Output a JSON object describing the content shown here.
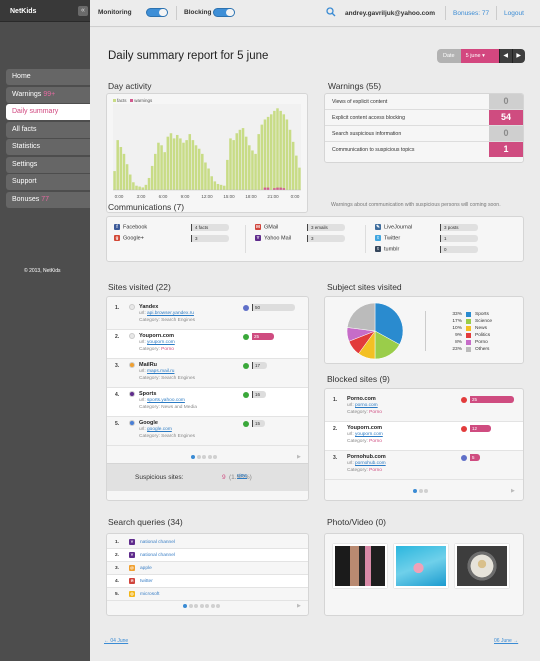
{
  "sidebar": {
    "logo": "NetKids",
    "collapse": "«",
    "items": [
      {
        "label": "Home",
        "badge": ""
      },
      {
        "label": "Warnings",
        "badge": "99+"
      },
      {
        "label": "Daily summary",
        "badge": ""
      },
      {
        "label": "All facts",
        "badge": ""
      },
      {
        "label": "Statistics",
        "badge": ""
      },
      {
        "label": "Settings",
        "badge": ""
      },
      {
        "label": "Support",
        "badge": ""
      },
      {
        "label": "Bonuses",
        "badge": "77"
      }
    ],
    "copyright": "© 2013, NetKids"
  },
  "topbar": {
    "monitoring_label": "Monitoring",
    "blocking_label": "Blocking",
    "email": "andrey.gavriljuk@yahoo.com",
    "bonuses": "Bonuses: 77",
    "logout": "Logout"
  },
  "page": {
    "title": "Daily summary report for 5 june",
    "date_label": "Date",
    "date_value": "5 june",
    "prev_arrow": "◀",
    "next_arrow": "▶",
    "prev_day": "← 04 June",
    "next_day": "06 June →"
  },
  "day_activity": {
    "title": "Day activity",
    "legend": [
      "facts",
      "warnings"
    ],
    "x_ticks": [
      "0:00",
      "3:00",
      "6:00",
      "9:00",
      "12:00",
      "15:00",
      "18:00",
      "21:00",
      "0:00"
    ],
    "colors": {
      "facts": "#c8dc86",
      "warnings": "#d25b8f"
    }
  },
  "chart_data": {
    "type": "bar",
    "x_ticks": [
      "0:00",
      "3:00",
      "6:00",
      "9:00",
      "12:00",
      "15:00",
      "18:00",
      "21:00",
      "0:00"
    ],
    "series": [
      {
        "name": "facts",
        "values": [
          22,
          58,
          50,
          42,
          30,
          18,
          9,
          5,
          4,
          3,
          6,
          14,
          28,
          42,
          55,
          52,
          44,
          62,
          66,
          60,
          64,
          60,
          55,
          58,
          65,
          58,
          52,
          48,
          42,
          32,
          25,
          16,
          10,
          7,
          6,
          5,
          35,
          60,
          58,
          66,
          70,
          72,
          62,
          52,
          46,
          42,
          65,
          76,
          82,
          85,
          88,
          92,
          95,
          92,
          88,
          82,
          70,
          56,
          40,
          26
        ]
      },
      {
        "name": "warnings",
        "values": [
          0,
          0,
          0,
          0,
          0,
          0,
          0,
          0,
          0,
          0,
          0,
          0,
          0,
          0,
          0,
          0,
          0,
          0,
          0,
          0,
          0,
          0,
          0,
          0,
          0,
          0,
          0,
          0,
          0,
          0,
          0,
          0,
          0,
          0,
          0,
          0,
          0,
          0,
          0,
          0,
          0,
          0,
          0,
          0,
          0,
          0,
          0,
          0,
          8,
          8,
          0,
          6,
          8,
          8,
          6,
          0,
          0,
          0,
          0,
          0
        ]
      }
    ]
  },
  "warnings": {
    "title": "Warnings (55)",
    "rows": [
      {
        "label": "Views of explicit content",
        "count": "0",
        "hot": false
      },
      {
        "label": "Explicit content access blocking",
        "count": "54",
        "hot": true
      },
      {
        "label": "Search suspicious information",
        "count": "0",
        "hot": false
      },
      {
        "label": "Communication to suspicious topics",
        "count": "1",
        "hot": true
      }
    ],
    "note": "Warnings about communication with suspicious persons will coming soon."
  },
  "communications": {
    "title": "Communications (7)",
    "items": [
      {
        "name": "Facebook",
        "value": "4 facts",
        "icon": "facebook-icon",
        "color": "#3b5998",
        "glyph": "f"
      },
      {
        "name": "Google+",
        "value": "3",
        "icon": "google-plus-icon",
        "color": "#d34836",
        "glyph": "g"
      },
      {
        "name": "GMail",
        "value": "3 emails",
        "icon": "gmail-icon",
        "color": "#d0443c",
        "glyph": "M"
      },
      {
        "name": "Yahoo Mail",
        "value": "3",
        "icon": "yahoo-icon",
        "color": "#5f2b8c",
        "glyph": "Y"
      },
      {
        "name": "LiveJournal",
        "value": "3 posts",
        "icon": "livejournal-icon",
        "color": "#3c6b9c",
        "glyph": "✎"
      },
      {
        "name": "Twitter",
        "value": "1",
        "icon": "twitter-icon",
        "color": "#41a6e0",
        "glyph": "t"
      },
      {
        "name": "tumblr",
        "value": "0",
        "icon": "tumblr-icon",
        "color": "#35465c",
        "glyph": "t"
      }
    ]
  },
  "sites_visited": {
    "title": "Sites visited (22)",
    "url_prefix": "url:",
    "cat_prefix": "Category:",
    "rows": [
      {
        "num": "1.",
        "name": "Yandex",
        "url": "api.browser.yandex.ru",
        "category": "Search Engines",
        "count": "50",
        "pink": false,
        "icon_color": "#e8e8e8"
      },
      {
        "num": "2.",
        "name": "Youporn.com",
        "url": "youporn.com",
        "category": "Porno",
        "count": "25",
        "pink": true,
        "icon_color": "#e8e8e8"
      },
      {
        "num": "3.",
        "name": "MailRu",
        "url": "maps.mail.ru",
        "category": "Search Engines",
        "count": "17",
        "pink": false,
        "icon_color": "#f0a030"
      },
      {
        "num": "4.",
        "name": "Sports",
        "url": "sports.yahoo.com",
        "category": "News and Media",
        "count": "16",
        "pink": false,
        "icon_color": "#5f2b8c"
      },
      {
        "num": "5.",
        "name": "Google",
        "url": "google.com",
        "category": "Search Engines",
        "count": "15",
        "pink": false,
        "icon_color": "#4a7fd6"
      }
    ],
    "suspicious_label": "Suspicious sites:",
    "suspicious_count": "9",
    "suspicious_pct": "(1.98%)",
    "view": "view"
  },
  "subject_sites": {
    "title": "Subject sites visited",
    "slices": [
      {
        "name": "Sports",
        "pct": "33%",
        "value": 33,
        "color": "#2a8bcf"
      },
      {
        "name": "Science",
        "pct": "17%",
        "value": 17,
        "color": "#9acd4a"
      },
      {
        "name": "News",
        "pct": "10%",
        "value": 10,
        "color": "#f3c024"
      },
      {
        "name": "Politics",
        "pct": "9%",
        "value": 9,
        "color": "#e23b3b"
      },
      {
        "name": "Porno",
        "pct": "8%",
        "value": 8,
        "color": "#c66cc8"
      },
      {
        "name": "Others",
        "pct": "23%",
        "value": 23,
        "color": "#bbbbbb"
      }
    ]
  },
  "blocked_sites": {
    "title": "Blocked sites (9)",
    "rows": [
      {
        "num": "1.",
        "name": "Porno.com",
        "url": "porno.com",
        "category": "Porno",
        "count": "25"
      },
      {
        "num": "2.",
        "name": "Youporn.com",
        "url": "youporn.com",
        "category": "Porno",
        "count": "12"
      },
      {
        "num": "3.",
        "name": "Pornohub.com",
        "url": "pornohub.com",
        "category": "Porno",
        "count": "5"
      }
    ]
  },
  "search_queries": {
    "title": "Search queries (34)",
    "rows": [
      {
        "num": "1.",
        "text": "national channel",
        "icon": "yahoo-icon",
        "color": "#5f2b8c",
        "glyph": "Y"
      },
      {
        "num": "2.",
        "text": "national channel",
        "icon": "yahoo-icon",
        "color": "#5f2b8c",
        "glyph": "Y"
      },
      {
        "num": "3.",
        "text": "apple",
        "icon": "mailru-icon",
        "color": "#f0a030",
        "glyph": "@"
      },
      {
        "num": "4.",
        "text": "twitter",
        "icon": "yandex-icon",
        "color": "#d0443c",
        "glyph": "Я"
      },
      {
        "num": "5.",
        "text": "microsoft",
        "icon": "search-engine-icon",
        "color": "#f3b61a",
        "glyph": "◎"
      }
    ]
  },
  "photo_video": {
    "title": "Photo/Video (0)"
  }
}
